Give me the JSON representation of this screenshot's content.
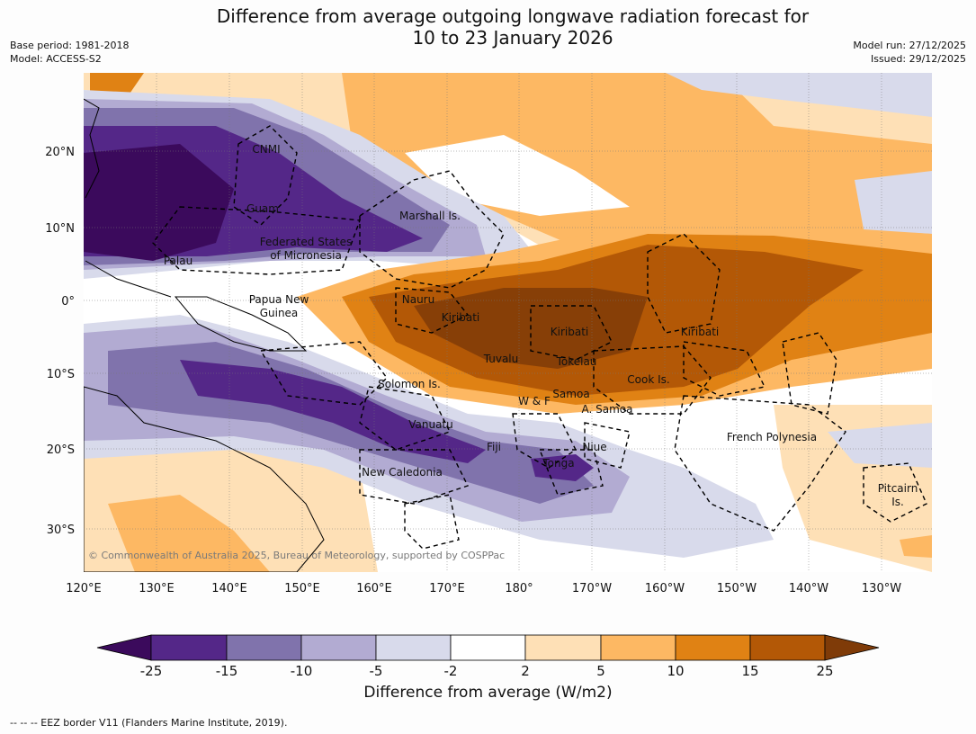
{
  "title_line1": "Difference from average outgoing longwave radiation forecast for",
  "title_line2": "10 to 23 January 2026",
  "base_period": "Base period: 1981-2018",
  "model": "Model: ACCESS-S2",
  "model_run": "Model run: 27/12/2025",
  "issued": "Issued: 29/12/2025",
  "copyright": "© Commonwealth of Australia 2025, Bureau of Meteorology, supported by COSPPac",
  "lon_labels": [
    "120°E",
    "130°E",
    "140°E",
    "150°E",
    "160°E",
    "170°E",
    "180°",
    "170°W",
    "160°W",
    "150°W",
    "140°W",
    "130°W"
  ],
  "lat_labels": [
    "20°N",
    "10°N",
    "0°",
    "10°S",
    "20°S",
    "30°S"
  ],
  "regions": [
    {
      "name": "CNMI"
    },
    {
      "name": "Guam"
    },
    {
      "name": "Marshall Is."
    },
    {
      "name": "Federated States"
    },
    {
      "name": "of Micronesia"
    },
    {
      "name": "Palau"
    },
    {
      "name": "Papua New"
    },
    {
      "name": "Guinea"
    },
    {
      "name": "Nauru"
    },
    {
      "name": "Kiribati"
    },
    {
      "name": "Kiribati"
    },
    {
      "name": "Kiribati"
    },
    {
      "name": "Tuvalu"
    },
    {
      "name": "Tokelau"
    },
    {
      "name": "Solomon Is."
    },
    {
      "name": "Cook Is."
    },
    {
      "name": "W & F"
    },
    {
      "name": "Samoa"
    },
    {
      "name": "A. Samoa"
    },
    {
      "name": "Vanuatu"
    },
    {
      "name": "Fiji"
    },
    {
      "name": "Niue"
    },
    {
      "name": "French Polynesia"
    },
    {
      "name": "Tonga"
    },
    {
      "name": "New Caledonia"
    },
    {
      "name": "Pitcairn"
    },
    {
      "name": "Is."
    }
  ],
  "colorbar": {
    "title": "Difference from average (W/m2)",
    "ticks": [
      "-25",
      "-15",
      "-10",
      "-5",
      "-2",
      "2",
      "5",
      "10",
      "15",
      "25"
    ],
    "colors": [
      "#3b0a5c",
      "#542788",
      "#8073ac",
      "#b2abd2",
      "#d8daeb",
      "#ffffff",
      "#fee0b6",
      "#fdb863",
      "#e08214",
      "#b35806",
      "#7f3b08"
    ]
  },
  "footnote": "--  --  -- EEZ border V11 (Flanders Marine Institute, 2019)."
}
